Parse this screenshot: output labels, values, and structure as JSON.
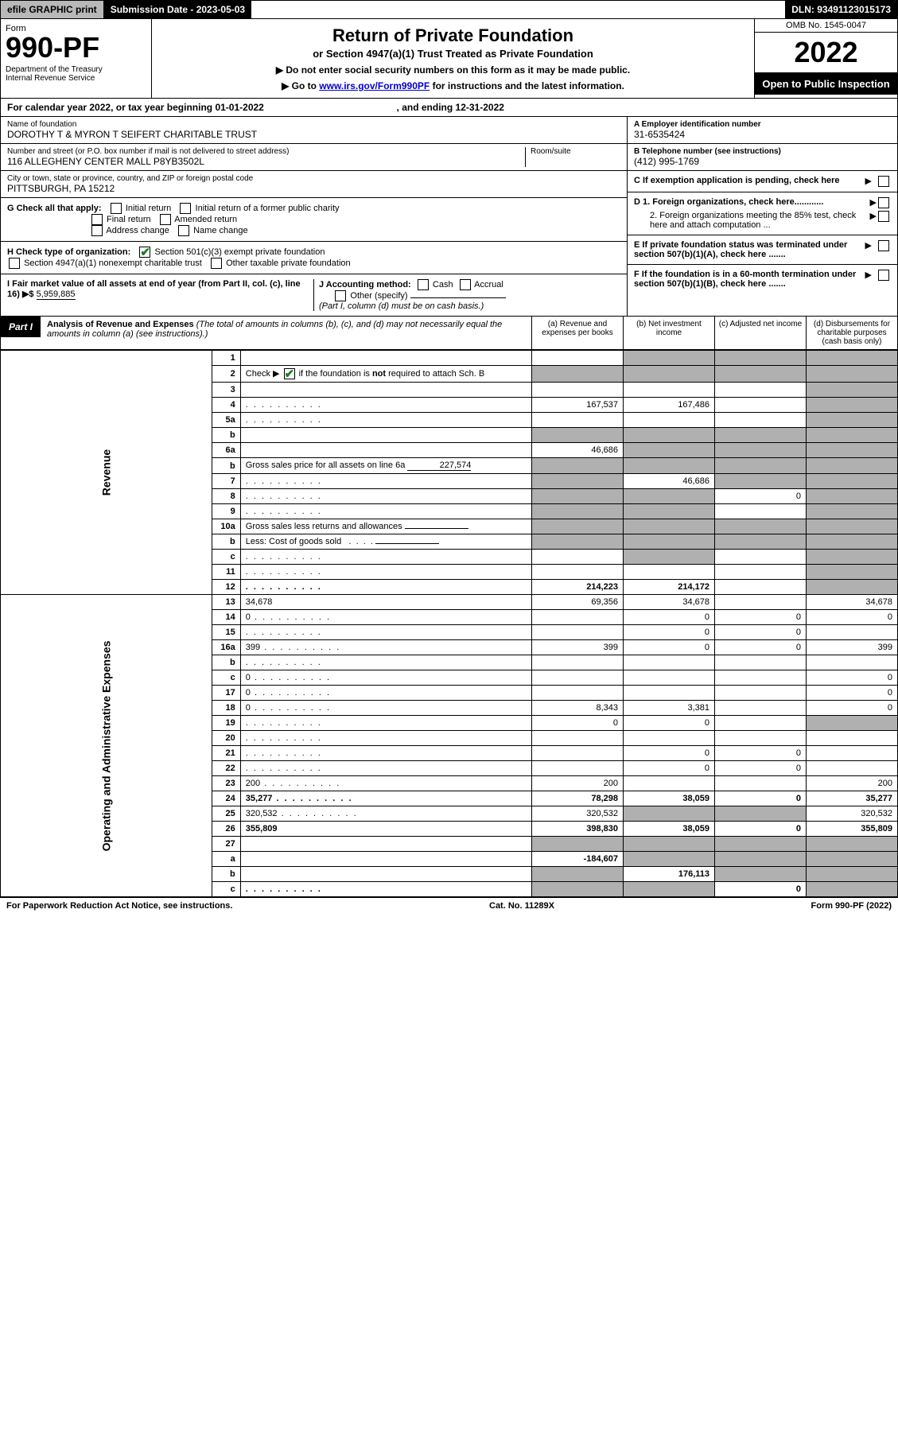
{
  "topbar": {
    "efile": "efile GRAPHIC print",
    "subdate": "Submission Date - 2023-05-03",
    "dln": "DLN: 93491123015173"
  },
  "header": {
    "form_label": "Form",
    "form_number": "990-PF",
    "dept": "Department of the Treasury\nInternal Revenue Service",
    "title": "Return of Private Foundation",
    "subtitle": "or Section 4947(a)(1) Trust Treated as Private Foundation",
    "instruct1": "▶ Do not enter social security numbers on this form as it may be made public.",
    "instruct2_prefix": "▶ Go to ",
    "instruct2_link": "www.irs.gov/Form990PF",
    "instruct2_suffix": " for instructions and the latest information.",
    "omb": "OMB No. 1545-0047",
    "taxyear": "2022",
    "open_public": "Open to Public Inspection"
  },
  "cal_year": {
    "prefix": "For calendar year 2022, or tax year beginning ",
    "begin": "01-01-2022",
    "mid": " , and ending ",
    "end": "12-31-2022"
  },
  "info": {
    "name_lbl": "Name of foundation",
    "name_val": "DOROTHY T & MYRON T SEIFERT CHARITABLE TRUST",
    "addr_lbl": "Number and street (or P.O. box number if mail is not delivered to street address)",
    "addr_val": "116 ALLEGHENY CENTER MALL P8YB3502L",
    "room_lbl": "Room/suite",
    "city_lbl": "City or town, state or province, country, and ZIP or foreign postal code",
    "city_val": "PITTSBURGH, PA  15212",
    "ein_lbl": "A Employer identification number",
    "ein_val": "31-6535424",
    "phone_lbl": "B Telephone number (see instructions)",
    "phone_val": "(412) 995-1769",
    "c_lbl": "C If exemption application is pending, check here",
    "d1_lbl": "D 1. Foreign organizations, check here............",
    "d2_lbl": "2. Foreign organizations meeting the 85% test, check here and attach computation ...",
    "e_lbl": "E If private foundation status was terminated under section 507(b)(1)(A), check here .......",
    "f_lbl": "F If the foundation is in a 60-month termination under section 507(b)(1)(B), check here .......",
    "g_lbl": "G Check all that apply:",
    "g_opts": [
      "Initial return",
      "Initial return of a former public charity",
      "Final return",
      "Amended return",
      "Address change",
      "Name change"
    ],
    "h_lbl": "H Check type of organization:",
    "h_opt1": "Section 501(c)(3) exempt private foundation",
    "h_opt2": "Section 4947(a)(1) nonexempt charitable trust",
    "h_opt3": "Other taxable private foundation",
    "i_lbl": "I Fair market value of all assets at end of year (from Part II, col. (c), line 16) ▶$ ",
    "i_val": "5,959,885",
    "j_lbl": "J Accounting method:",
    "j_opts": [
      "Cash",
      "Accrual"
    ],
    "j_other": "Other (specify)",
    "j_note": "(Part I, column (d) must be on cash basis.)"
  },
  "part1": {
    "label": "Part I",
    "title": "Analysis of Revenue and Expenses",
    "subtitle": "(The total of amounts in columns (b), (c), and (d) may not necessarily equal the amounts in column (a) (see instructions).)",
    "col_a": "(a) Revenue and expenses per books",
    "col_b": "(b) Net investment income",
    "col_c": "(c) Adjusted net income",
    "col_d": "(d) Disbursements for charitable purposes (cash basis only)"
  },
  "sidelabels": {
    "rev": "Revenue",
    "op": "Operating and Administrative Expenses"
  },
  "rows": [
    {
      "n": "1",
      "d": "",
      "a": "",
      "b": "",
      "c": "",
      "shade": [
        "b",
        "c",
        "d"
      ]
    },
    {
      "n": "2",
      "d_html": "Check ▶ <span class=\"chk on\"></span> if the foundation is <b>not</b> required to attach Sch. B",
      "a": "",
      "b": "",
      "c": "",
      "d": "",
      "shade": [
        "a",
        "b",
        "c",
        "d"
      ]
    },
    {
      "n": "3",
      "d": "",
      "a": "",
      "b": "",
      "c": "",
      "shade": [
        "d"
      ]
    },
    {
      "n": "4",
      "d": "",
      "dots": true,
      "a": "167,537",
      "b": "167,486",
      "c": "",
      "shade": [
        "d"
      ]
    },
    {
      "n": "5a",
      "d": "",
      "dots": true,
      "a": "",
      "b": "",
      "c": "",
      "shade": [
        "d"
      ]
    },
    {
      "n": "b",
      "d": "",
      "a": "",
      "b": "",
      "c": "",
      "shade": [
        "a",
        "b",
        "c",
        "d"
      ],
      "inline": true
    },
    {
      "n": "6a",
      "d": "",
      "a": "46,686",
      "b": "",
      "c": "",
      "shade": [
        "b",
        "c",
        "d"
      ]
    },
    {
      "n": "b",
      "d_html": "Gross sales price for all assets on line 6a <span class=\"inline-input\" style=\"min-width:80px;text-align:right;\">227,574</span>",
      "a": "",
      "b": "",
      "c": "",
      "d": "",
      "shade": [
        "a",
        "b",
        "c",
        "d"
      ]
    },
    {
      "n": "7",
      "d": "",
      "dots": true,
      "a": "",
      "b": "46,686",
      "c": "",
      "shade": [
        "a",
        "c",
        "d"
      ]
    },
    {
      "n": "8",
      "d": "",
      "dots": true,
      "a": "",
      "b": "",
      "c": "0",
      "shade": [
        "a",
        "b",
        "d"
      ]
    },
    {
      "n": "9",
      "d": "",
      "dots": true,
      "a": "",
      "b": "",
      "c": "",
      "shade": [
        "a",
        "b",
        "d"
      ]
    },
    {
      "n": "10a",
      "d_html": "Gross sales less returns and allowances <span class=\"inline-input\" style=\"min-width:80px;\"></span>",
      "a": "",
      "b": "",
      "c": "",
      "d": "",
      "shade": [
        "a",
        "b",
        "c",
        "d"
      ]
    },
    {
      "n": "b",
      "d_html": "Less: Cost of goods sold &nbsp;&nbsp;.&nbsp;&nbsp;.&nbsp;&nbsp;.&nbsp;&nbsp;. <span class=\"inline-input\" style=\"min-width:80px;\"></span>",
      "a": "",
      "b": "",
      "c": "",
      "d": "",
      "shade": [
        "a",
        "b",
        "c",
        "d"
      ]
    },
    {
      "n": "c",
      "d": "",
      "dots": true,
      "a": "",
      "b": "",
      "c": "",
      "shade": [
        "b",
        "d"
      ]
    },
    {
      "n": "11",
      "d": "",
      "dots": true,
      "a": "",
      "b": "",
      "c": "",
      "shade": [
        "d"
      ]
    },
    {
      "n": "12",
      "d": "",
      "dots": true,
      "bold": true,
      "a": "214,223",
      "b": "214,172",
      "c": "",
      "shade": [
        "d"
      ]
    },
    {
      "n": "13",
      "d": "34,678",
      "a": "69,356",
      "b": "34,678",
      "c": ""
    },
    {
      "n": "14",
      "d": "0",
      "dots": true,
      "a": "",
      "b": "0",
      "c": "0"
    },
    {
      "n": "15",
      "d": "",
      "dots": true,
      "a": "",
      "b": "0",
      "c": "0"
    },
    {
      "n": "16a",
      "d": "399",
      "dots": true,
      "a": "399",
      "b": "0",
      "c": "0"
    },
    {
      "n": "b",
      "d": "",
      "dots": true,
      "a": "",
      "b": "",
      "c": ""
    },
    {
      "n": "c",
      "d": "0",
      "dots": true,
      "a": "",
      "b": "",
      "c": ""
    },
    {
      "n": "17",
      "d": "0",
      "dots": true,
      "a": "",
      "b": "",
      "c": ""
    },
    {
      "n": "18",
      "d": "0",
      "dots": true,
      "a": "8,343",
      "b": "3,381",
      "c": ""
    },
    {
      "n": "19",
      "d": "",
      "dots": true,
      "a": "0",
      "b": "0",
      "c": "",
      "shade": [
        "d"
      ]
    },
    {
      "n": "20",
      "d": "",
      "dots": true,
      "a": "",
      "b": "",
      "c": ""
    },
    {
      "n": "21",
      "d": "",
      "dots": true,
      "a": "",
      "b": "0",
      "c": "0"
    },
    {
      "n": "22",
      "d": "",
      "dots": true,
      "a": "",
      "b": "0",
      "c": "0"
    },
    {
      "n": "23",
      "d": "200",
      "dots": true,
      "a": "200",
      "b": "",
      "c": ""
    },
    {
      "n": "24",
      "d": "35,277",
      "dots": true,
      "bold": true,
      "a": "78,298",
      "b": "38,059",
      "c": "0"
    },
    {
      "n": "25",
      "d": "320,532",
      "dots": true,
      "a": "320,532",
      "b": "",
      "c": "",
      "shade": [
        "b",
        "c"
      ]
    },
    {
      "n": "26",
      "d": "355,809",
      "bold": true,
      "a": "398,830",
      "b": "38,059",
      "c": "0"
    },
    {
      "n": "27",
      "d": "",
      "a": "",
      "b": "",
      "c": "",
      "shade": [
        "a",
        "b",
        "c",
        "d"
      ]
    },
    {
      "n": "a",
      "d": "",
      "bold": true,
      "a": "-184,607",
      "b": "",
      "c": "",
      "shade": [
        "b",
        "c",
        "d"
      ]
    },
    {
      "n": "b",
      "d": "",
      "bold": true,
      "a": "",
      "b": "176,113",
      "c": "",
      "shade": [
        "a",
        "c",
        "d"
      ]
    },
    {
      "n": "c",
      "d": "",
      "dots": true,
      "bold": true,
      "a": "",
      "b": "",
      "c": "0",
      "shade": [
        "a",
        "b",
        "d"
      ]
    }
  ],
  "footer": {
    "left": "For Paperwork Reduction Act Notice, see instructions.",
    "mid": "Cat. No. 11289X",
    "right": "Form 990-PF (2022)"
  }
}
